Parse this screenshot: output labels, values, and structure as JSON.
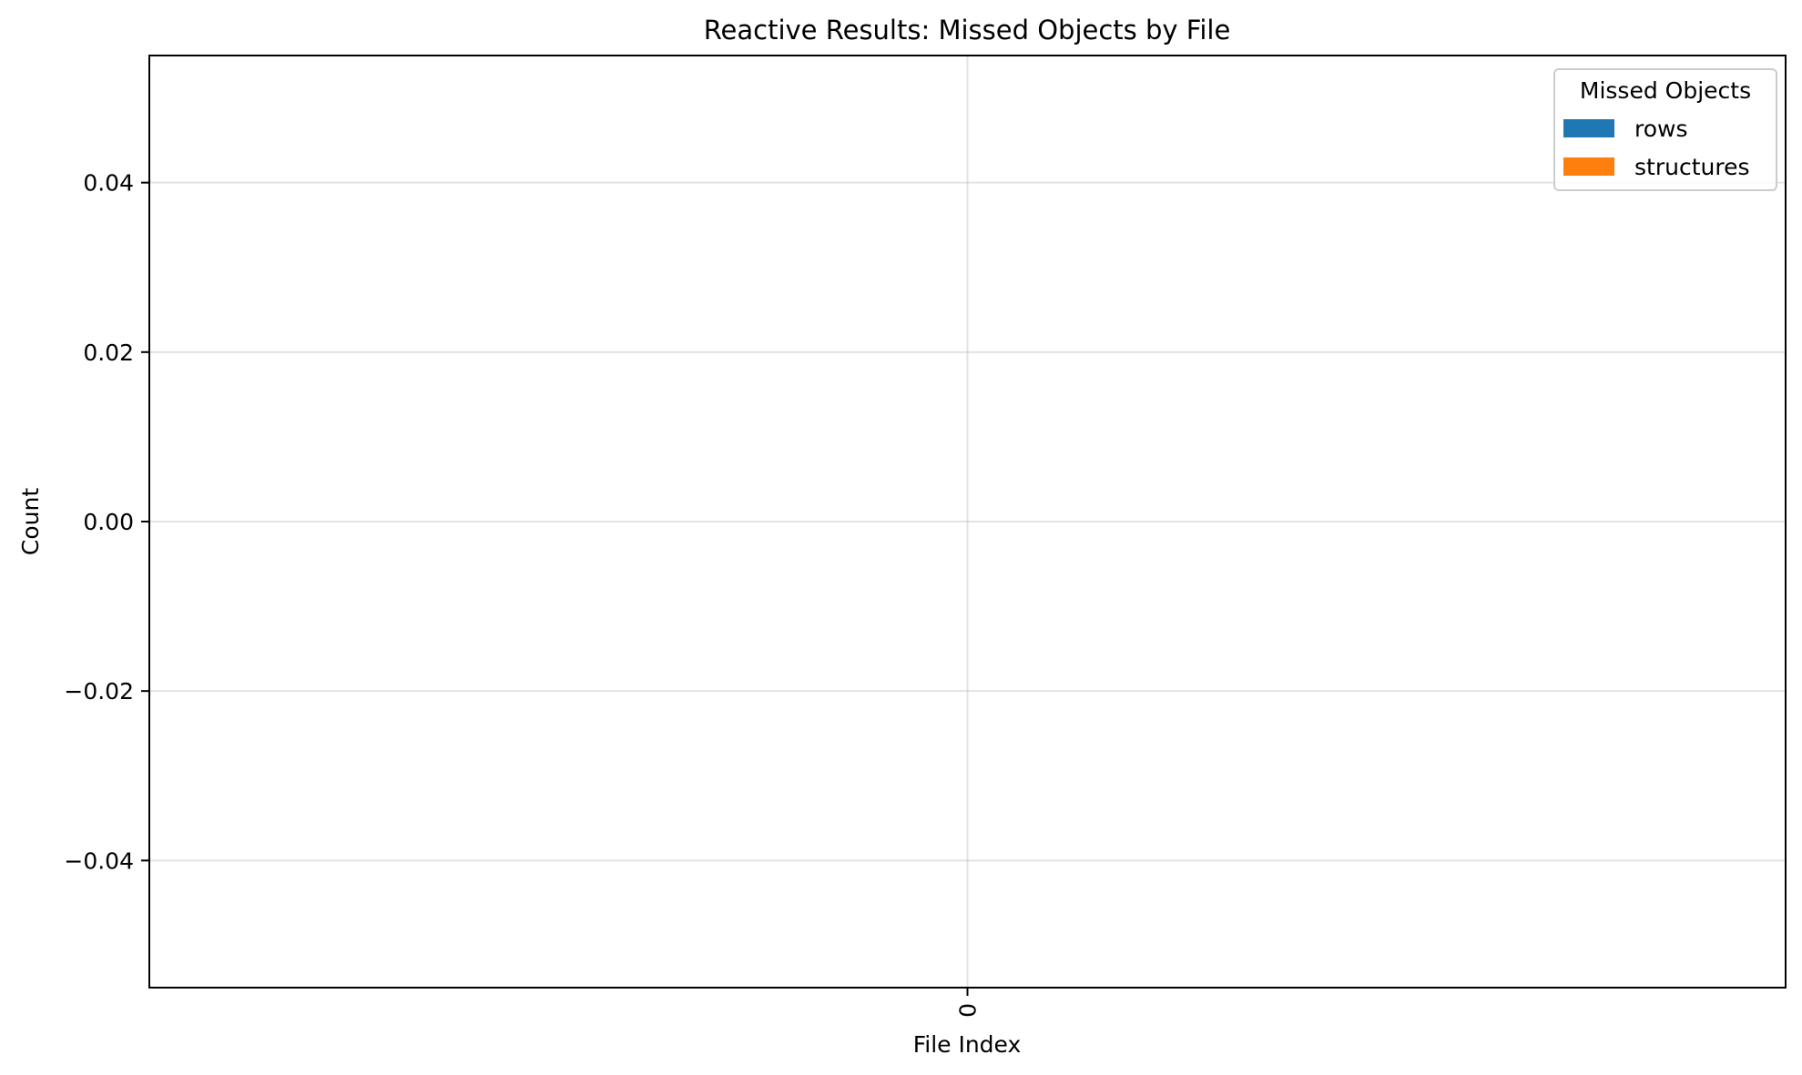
{
  "chart_data": {
    "type": "bar",
    "title": "Reactive Results: Missed Objects by File",
    "xlabel": "File Index",
    "ylabel": "Count",
    "categories": [
      "0"
    ],
    "series": [
      {
        "name": "rows",
        "values": [
          0
        ],
        "color": "#1f77b4"
      },
      {
        "name": "structures",
        "values": [
          0
        ],
        "color": "#ff7f0e"
      }
    ],
    "ylim": [
      -0.055,
      0.055
    ],
    "yticks": [
      -0.04,
      -0.02,
      0.0,
      0.02,
      0.04
    ],
    "ytick_labels": [
      "−0.04",
      "−0.02",
      "0.00",
      "0.02",
      "0.04"
    ],
    "xtick_rotation": "vertical",
    "grid": true,
    "legend": {
      "title": "Missed Objects",
      "placement": "top-right"
    }
  }
}
